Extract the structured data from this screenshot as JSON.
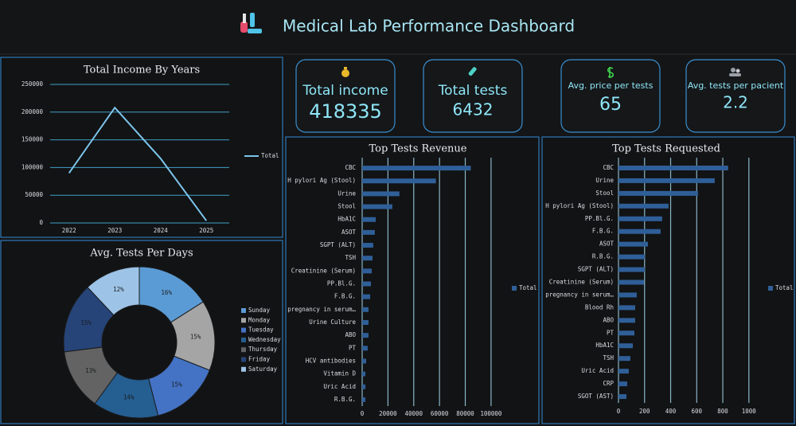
{
  "header": {
    "title": "Medical Lab Performance Dashboard"
  },
  "kpis": [
    {
      "label": "Total income",
      "value": 418335
    },
    {
      "label": "Total tests",
      "value": 6432
    },
    {
      "label": "Avg. price per tests",
      "value": 65
    },
    {
      "label": "Avg. tests per pacient",
      "value": 2.2
    }
  ],
  "chart_data": [
    {
      "type": "line",
      "title": "Total Income By Years",
      "categories": [
        "2022",
        "2023",
        "2024",
        "2025"
      ],
      "series": [
        {
          "name": "Total",
          "color": "#7cc4ec",
          "values": [
            90000,
            208000,
            116335,
            4000
          ]
        }
      ],
      "ylim": [
        0,
        250000
      ],
      "yticks": [
        0,
        50000,
        100000,
        150000,
        200000,
        250000
      ],
      "grid": true,
      "legend": "right"
    },
    {
      "type": "pie",
      "title": "Avg. Tests Per Days",
      "categories": [
        "Sunday",
        "Monday",
        "Tuesday",
        "Wednesday",
        "Thursday",
        "Friday",
        "Saturday"
      ],
      "values": [
        16,
        15,
        15,
        14,
        13,
        15,
        12
      ],
      "value_labels": [
        "16%",
        "15%",
        "15%",
        "14%",
        "13%",
        "15%",
        "12%"
      ],
      "colors": [
        "#5b9bd5",
        "#a5a5a5",
        "#4472c4",
        "#255e91",
        "#636363",
        "#264478",
        "#9dc3e6"
      ],
      "legend": "right"
    },
    {
      "type": "hbar",
      "title": "Top Tests Revenue",
      "categories": [
        "CBC",
        "H pylori Ag (Stool)",
        "Urine",
        "Stool",
        "HbA1C",
        "ASOT",
        "SGPT (ALT)",
        "TSH",
        "Creatinine (Serum)",
        "PP.Bl.G.",
        "F.B.G.",
        "pregnancy in serum…",
        "Urine Culture",
        "ABO",
        "PT",
        "HCV antibodies",
        "Vitamin D",
        "Uric Acid",
        "R.B.G."
      ],
      "series": [
        {
          "name": "Total",
          "color": "#2f5f98",
          "values": [
            84300,
            57200,
            28900,
            23400,
            10500,
            9800,
            8600,
            8000,
            7400,
            6800,
            6200,
            4900,
            4900,
            4900,
            4300,
            3100,
            2500,
            2500,
            2500
          ]
        }
      ],
      "xlim": [
        0,
        105000
      ],
      "xticks": [
        0,
        20000,
        40000,
        60000,
        80000,
        100000
      ],
      "grid": true,
      "legend": "right"
    },
    {
      "type": "hbar",
      "title": "Top Tests Requested",
      "categories": [
        "CBC",
        "Urine",
        "Stool",
        "H pylori Ag (Stool)",
        "PP.Bl.G.",
        "F.B.G.",
        "ASOT",
        "R.B.G.",
        "SGPT (ALT)",
        "Creatinine (Serum)",
        "pregnancy in serum…",
        "Blood Rh",
        "ABO",
        "PT",
        "HbA1C",
        "TSH",
        "Uric Acid",
        "CRP",
        "SGOT (AST)"
      ],
      "series": [
        {
          "name": "Total",
          "color": "#2f5f98",
          "values": [
            841,
            738,
            610,
            384,
            335,
            323,
            226,
            201,
            201,
            195,
            140,
            128,
            128,
            122,
            110,
            91,
            79,
            67,
            61
          ]
        }
      ],
      "xlim": [
        0,
        1050
      ],
      "xticks": [
        0,
        200,
        400,
        600,
        800,
        1000
      ],
      "grid": true,
      "legend": "right"
    }
  ]
}
